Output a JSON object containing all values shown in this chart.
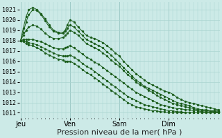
{
  "bg_color": "#cceae7",
  "grid_color": "#aad4d0",
  "line_color": "#1a5c1a",
  "xlabel": "Pression niveau de la mer( hPa )",
  "xlabel_fontsize": 8,
  "ytick_labels": [
    "1011",
    "1012",
    "1013",
    "1014",
    "1015",
    "1016",
    "1017",
    "1018",
    "1019",
    "1020",
    "1021"
  ],
  "ytick_values": [
    1011,
    1012,
    1013,
    1014,
    1015,
    1016,
    1017,
    1018,
    1019,
    1020,
    1021
  ],
  "ylim": [
    1010.5,
    1021.7
  ],
  "xtick_labels": [
    "Jeu",
    "Ven",
    "Sam",
    "Dim"
  ],
  "xtick_positions": [
    0,
    72,
    144,
    216
  ],
  "xlim": [
    -2,
    290
  ],
  "curves": [
    {
      "x": [
        0,
        4,
        8,
        12,
        18,
        24,
        30,
        36,
        42,
        48,
        55,
        62,
        65,
        68,
        72,
        78,
        84,
        90,
        96,
        102,
        108,
        114,
        120,
        126,
        132,
        138,
        144,
        150,
        156,
        162,
        168,
        174,
        180,
        186,
        192,
        198,
        204,
        210,
        216,
        222,
        228,
        234,
        240,
        246,
        252,
        258,
        264,
        270,
        276,
        282,
        288
      ],
      "y": [
        1018.0,
        1019.2,
        1020.3,
        1021.0,
        1021.2,
        1021.0,
        1020.6,
        1020.1,
        1019.5,
        1019.0,
        1018.8,
        1018.8,
        1019.0,
        1019.5,
        1020.0,
        1019.8,
        1019.3,
        1018.9,
        1018.5,
        1018.3,
        1018.2,
        1018.0,
        1017.8,
        1017.5,
        1017.2,
        1016.8,
        1016.5,
        1016.0,
        1015.6,
        1015.2,
        1014.8,
        1014.5,
        1014.2,
        1013.9,
        1013.7,
        1013.5,
        1013.3,
        1013.1,
        1013.0,
        1012.8,
        1012.5,
        1012.3,
        1012.1,
        1012.0,
        1011.9,
        1011.8,
        1011.7,
        1011.6,
        1011.5,
        1011.4,
        1011.3
      ]
    },
    {
      "x": [
        0,
        4,
        8,
        12,
        18,
        24,
        30,
        36,
        42,
        48,
        55,
        62,
        65,
        68,
        72,
        78,
        84,
        90,
        96,
        102,
        108,
        114,
        120,
        126,
        132,
        138,
        144,
        150,
        156,
        162,
        168,
        174,
        180,
        186,
        192,
        198,
        204,
        210,
        216,
        222,
        228,
        234,
        240,
        246,
        252,
        258,
        264,
        270,
        276,
        282,
        288
      ],
      "y": [
        1018.0,
        1018.8,
        1019.8,
        1020.5,
        1021.0,
        1020.9,
        1020.5,
        1019.9,
        1019.3,
        1018.9,
        1018.7,
        1018.7,
        1018.9,
        1019.2,
        1019.5,
        1019.3,
        1018.9,
        1018.5,
        1018.1,
        1017.9,
        1017.7,
        1017.5,
        1017.3,
        1016.9,
        1016.6,
        1016.2,
        1015.8,
        1015.4,
        1015.0,
        1014.6,
        1014.2,
        1013.9,
        1013.6,
        1013.4,
        1013.2,
        1013.0,
        1012.8,
        1012.6,
        1012.4,
        1012.2,
        1012.0,
        1011.9,
        1011.8,
        1011.7,
        1011.5,
        1011.4,
        1011.3,
        1011.3,
        1011.2,
        1011.2,
        1011.2
      ]
    },
    {
      "x": [
        0,
        4,
        8,
        12,
        18,
        24,
        30,
        36,
        42,
        48,
        55,
        62,
        65,
        68,
        72,
        78,
        84,
        90,
        96,
        102,
        108,
        114,
        120,
        126,
        132,
        138,
        144,
        150,
        156,
        162,
        168,
        174,
        180,
        186,
        192,
        198,
        204,
        210,
        216,
        222,
        228,
        234,
        240,
        246,
        252,
        258,
        264,
        270,
        276,
        282,
        288
      ],
      "y": [
        1018.0,
        1018.5,
        1019.0,
        1019.3,
        1019.5,
        1019.4,
        1019.1,
        1018.7,
        1018.4,
        1018.2,
        1018.2,
        1018.3,
        1018.5,
        1018.7,
        1019.0,
        1018.8,
        1018.5,
        1018.1,
        1017.7,
        1017.5,
        1017.3,
        1017.1,
        1016.8,
        1016.5,
        1016.1,
        1015.8,
        1015.5,
        1015.1,
        1014.7,
        1014.4,
        1014.0,
        1013.7,
        1013.5,
        1013.2,
        1013.0,
        1012.7,
        1012.5,
        1012.3,
        1012.1,
        1011.9,
        1011.8,
        1011.7,
        1011.6,
        1011.5,
        1011.4,
        1011.3,
        1011.2,
        1011.2,
        1011.2,
        1011.1,
        1011.1
      ]
    },
    {
      "x": [
        0,
        4,
        8,
        12,
        18,
        24,
        30,
        36,
        42,
        48,
        55,
        62,
        65,
        68,
        72,
        78,
        84,
        90,
        96,
        102,
        108,
        114,
        120,
        126,
        132,
        138,
        144,
        150,
        156,
        162,
        168,
        174,
        180,
        186,
        192,
        198,
        204,
        210,
        216,
        222,
        228,
        234,
        240,
        246,
        252,
        258,
        264,
        270,
        276,
        282,
        288
      ],
      "y": [
        1018.0,
        1018.1,
        1018.1,
        1018.1,
        1018.1,
        1018.0,
        1017.9,
        1017.7,
        1017.5,
        1017.3,
        1017.2,
        1017.2,
        1017.3,
        1017.4,
        1017.5,
        1017.3,
        1017.0,
        1016.7,
        1016.4,
        1016.2,
        1015.9,
        1015.7,
        1015.4,
        1015.1,
        1014.8,
        1014.5,
        1014.2,
        1013.9,
        1013.6,
        1013.3,
        1013.0,
        1012.8,
        1012.6,
        1012.4,
        1012.2,
        1012.0,
        1011.8,
        1011.7,
        1011.6,
        1011.5,
        1011.4,
        1011.4,
        1011.3,
        1011.3,
        1011.2,
        1011.2,
        1011.1,
        1011.1,
        1011.1,
        1011.1,
        1011.1
      ]
    },
    {
      "x": [
        0,
        4,
        8,
        12,
        18,
        24,
        30,
        36,
        42,
        48,
        55,
        62,
        65,
        68,
        72,
        78,
        84,
        90,
        96,
        102,
        108,
        114,
        120,
        126,
        132,
        138,
        144,
        150,
        156,
        162,
        168,
        174,
        180,
        186,
        192,
        198,
        204,
        210,
        216,
        222,
        228,
        234,
        240,
        246,
        252,
        258,
        264,
        270,
        276,
        282,
        288
      ],
      "y": [
        1018.0,
        1018.0,
        1017.9,
        1017.8,
        1017.7,
        1017.6,
        1017.4,
        1017.2,
        1017.0,
        1016.8,
        1016.6,
        1016.5,
        1016.5,
        1016.5,
        1016.6,
        1016.4,
        1016.1,
        1015.8,
        1015.5,
        1015.3,
        1015.0,
        1014.7,
        1014.4,
        1014.1,
        1013.8,
        1013.5,
        1013.2,
        1012.9,
        1012.6,
        1012.4,
        1012.2,
        1012.0,
        1011.8,
        1011.7,
        1011.6,
        1011.5,
        1011.4,
        1011.3,
        1011.2,
        1011.2,
        1011.1,
        1011.1,
        1011.0,
        1011.0,
        1011.0,
        1011.0,
        1011.0,
        1011.0,
        1011.0,
        1011.0,
        1011.0
      ]
    },
    {
      "x": [
        0,
        4,
        8,
        12,
        18,
        24,
        30,
        36,
        42,
        48,
        55,
        62,
        65,
        68,
        72,
        78,
        84,
        90,
        96,
        102,
        108,
        114,
        120,
        126,
        132,
        138,
        144,
        150,
        156,
        162,
        168,
        174,
        180,
        186,
        192,
        198,
        204,
        210,
        216,
        222,
        228,
        234,
        240,
        246,
        252,
        258,
        264,
        270,
        276,
        282,
        288
      ],
      "y": [
        1018.0,
        1017.9,
        1017.7,
        1017.6,
        1017.5,
        1017.3,
        1017.1,
        1016.8,
        1016.6,
        1016.4,
        1016.2,
        1016.1,
        1016.0,
        1016.0,
        1016.0,
        1015.8,
        1015.5,
        1015.2,
        1014.9,
        1014.7,
        1014.4,
        1014.1,
        1013.8,
        1013.5,
        1013.2,
        1012.9,
        1012.6,
        1012.3,
        1012.0,
        1011.8,
        1011.6,
        1011.5,
        1011.4,
        1011.3,
        1011.2,
        1011.2,
        1011.1,
        1011.1,
        1011.0,
        1011.0,
        1011.0,
        1011.0,
        1011.0,
        1011.0,
        1011.0,
        1011.0,
        1011.0,
        1011.0,
        1011.0,
        1011.0,
        1011.0
      ]
    }
  ]
}
